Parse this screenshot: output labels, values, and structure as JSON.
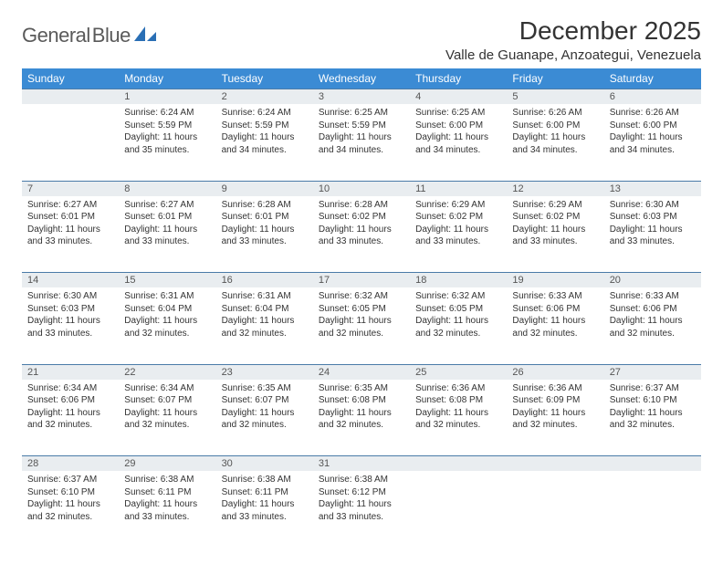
{
  "brand": {
    "name_part1": "General",
    "name_part2": "Blue"
  },
  "title": "December 2025",
  "location": "Valle de Guanape, Anzoategui, Venezuela",
  "colors": {
    "header_bg": "#3b8bd4",
    "header_text": "#ffffff",
    "daynum_bg": "#e9edf0",
    "row_border": "#4a7ba8",
    "text": "#333333",
    "logo_gray": "#5a5a5a",
    "logo_blue": "#2a6fb5"
  },
  "day_headers": [
    "Sunday",
    "Monday",
    "Tuesday",
    "Wednesday",
    "Thursday",
    "Friday",
    "Saturday"
  ],
  "weeks": [
    {
      "nums": [
        "",
        "1",
        "2",
        "3",
        "4",
        "5",
        "6"
      ],
      "cells": [
        null,
        {
          "sunrise": "Sunrise: 6:24 AM",
          "sunset": "Sunset: 5:59 PM",
          "daylight": "Daylight: 11 hours and 35 minutes."
        },
        {
          "sunrise": "Sunrise: 6:24 AM",
          "sunset": "Sunset: 5:59 PM",
          "daylight": "Daylight: 11 hours and 34 minutes."
        },
        {
          "sunrise": "Sunrise: 6:25 AM",
          "sunset": "Sunset: 5:59 PM",
          "daylight": "Daylight: 11 hours and 34 minutes."
        },
        {
          "sunrise": "Sunrise: 6:25 AM",
          "sunset": "Sunset: 6:00 PM",
          "daylight": "Daylight: 11 hours and 34 minutes."
        },
        {
          "sunrise": "Sunrise: 6:26 AM",
          "sunset": "Sunset: 6:00 PM",
          "daylight": "Daylight: 11 hours and 34 minutes."
        },
        {
          "sunrise": "Sunrise: 6:26 AM",
          "sunset": "Sunset: 6:00 PM",
          "daylight": "Daylight: 11 hours and 34 minutes."
        }
      ]
    },
    {
      "nums": [
        "7",
        "8",
        "9",
        "10",
        "11",
        "12",
        "13"
      ],
      "cells": [
        {
          "sunrise": "Sunrise: 6:27 AM",
          "sunset": "Sunset: 6:01 PM",
          "daylight": "Daylight: 11 hours and 33 minutes."
        },
        {
          "sunrise": "Sunrise: 6:27 AM",
          "sunset": "Sunset: 6:01 PM",
          "daylight": "Daylight: 11 hours and 33 minutes."
        },
        {
          "sunrise": "Sunrise: 6:28 AM",
          "sunset": "Sunset: 6:01 PM",
          "daylight": "Daylight: 11 hours and 33 minutes."
        },
        {
          "sunrise": "Sunrise: 6:28 AM",
          "sunset": "Sunset: 6:02 PM",
          "daylight": "Daylight: 11 hours and 33 minutes."
        },
        {
          "sunrise": "Sunrise: 6:29 AM",
          "sunset": "Sunset: 6:02 PM",
          "daylight": "Daylight: 11 hours and 33 minutes."
        },
        {
          "sunrise": "Sunrise: 6:29 AM",
          "sunset": "Sunset: 6:02 PM",
          "daylight": "Daylight: 11 hours and 33 minutes."
        },
        {
          "sunrise": "Sunrise: 6:30 AM",
          "sunset": "Sunset: 6:03 PM",
          "daylight": "Daylight: 11 hours and 33 minutes."
        }
      ]
    },
    {
      "nums": [
        "14",
        "15",
        "16",
        "17",
        "18",
        "19",
        "20"
      ],
      "cells": [
        {
          "sunrise": "Sunrise: 6:30 AM",
          "sunset": "Sunset: 6:03 PM",
          "daylight": "Daylight: 11 hours and 33 minutes."
        },
        {
          "sunrise": "Sunrise: 6:31 AM",
          "sunset": "Sunset: 6:04 PM",
          "daylight": "Daylight: 11 hours and 32 minutes."
        },
        {
          "sunrise": "Sunrise: 6:31 AM",
          "sunset": "Sunset: 6:04 PM",
          "daylight": "Daylight: 11 hours and 32 minutes."
        },
        {
          "sunrise": "Sunrise: 6:32 AM",
          "sunset": "Sunset: 6:05 PM",
          "daylight": "Daylight: 11 hours and 32 minutes."
        },
        {
          "sunrise": "Sunrise: 6:32 AM",
          "sunset": "Sunset: 6:05 PM",
          "daylight": "Daylight: 11 hours and 32 minutes."
        },
        {
          "sunrise": "Sunrise: 6:33 AM",
          "sunset": "Sunset: 6:06 PM",
          "daylight": "Daylight: 11 hours and 32 minutes."
        },
        {
          "sunrise": "Sunrise: 6:33 AM",
          "sunset": "Sunset: 6:06 PM",
          "daylight": "Daylight: 11 hours and 32 minutes."
        }
      ]
    },
    {
      "nums": [
        "21",
        "22",
        "23",
        "24",
        "25",
        "26",
        "27"
      ],
      "cells": [
        {
          "sunrise": "Sunrise: 6:34 AM",
          "sunset": "Sunset: 6:06 PM",
          "daylight": "Daylight: 11 hours and 32 minutes."
        },
        {
          "sunrise": "Sunrise: 6:34 AM",
          "sunset": "Sunset: 6:07 PM",
          "daylight": "Daylight: 11 hours and 32 minutes."
        },
        {
          "sunrise": "Sunrise: 6:35 AM",
          "sunset": "Sunset: 6:07 PM",
          "daylight": "Daylight: 11 hours and 32 minutes."
        },
        {
          "sunrise": "Sunrise: 6:35 AM",
          "sunset": "Sunset: 6:08 PM",
          "daylight": "Daylight: 11 hours and 32 minutes."
        },
        {
          "sunrise": "Sunrise: 6:36 AM",
          "sunset": "Sunset: 6:08 PM",
          "daylight": "Daylight: 11 hours and 32 minutes."
        },
        {
          "sunrise": "Sunrise: 6:36 AM",
          "sunset": "Sunset: 6:09 PM",
          "daylight": "Daylight: 11 hours and 32 minutes."
        },
        {
          "sunrise": "Sunrise: 6:37 AM",
          "sunset": "Sunset: 6:10 PM",
          "daylight": "Daylight: 11 hours and 32 minutes."
        }
      ]
    },
    {
      "nums": [
        "28",
        "29",
        "30",
        "31",
        "",
        "",
        ""
      ],
      "cells": [
        {
          "sunrise": "Sunrise: 6:37 AM",
          "sunset": "Sunset: 6:10 PM",
          "daylight": "Daylight: 11 hours and 32 minutes."
        },
        {
          "sunrise": "Sunrise: 6:38 AM",
          "sunset": "Sunset: 6:11 PM",
          "daylight": "Daylight: 11 hours and 33 minutes."
        },
        {
          "sunrise": "Sunrise: 6:38 AM",
          "sunset": "Sunset: 6:11 PM",
          "daylight": "Daylight: 11 hours and 33 minutes."
        },
        {
          "sunrise": "Sunrise: 6:38 AM",
          "sunset": "Sunset: 6:12 PM",
          "daylight": "Daylight: 11 hours and 33 minutes."
        },
        null,
        null,
        null
      ]
    }
  ]
}
